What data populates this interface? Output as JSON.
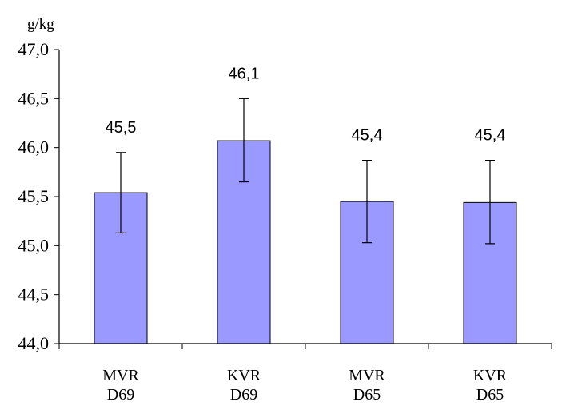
{
  "chart_data": {
    "type": "bar",
    "unit_label": "g/kg",
    "categories": [
      [
        "MVR",
        "D69"
      ],
      [
        "KVR",
        "D69"
      ],
      [
        "MVR",
        "D65"
      ],
      [
        "KVR",
        "D65"
      ]
    ],
    "values": [
      45.54,
      46.07,
      45.45,
      45.44
    ],
    "data_labels": [
      "45,5",
      "46,1",
      "45,4",
      "45,4"
    ],
    "error_low": [
      45.13,
      45.65,
      45.03,
      45.02
    ],
    "error_high": [
      45.95,
      46.5,
      45.87,
      45.87
    ],
    "ylim": [
      44.0,
      47.0
    ],
    "yticks": [
      44.0,
      44.5,
      45.0,
      45.5,
      46.0,
      46.5,
      47.0
    ],
    "ytick_labels": [
      "44,0",
      "44,5",
      "45,0",
      "45,5",
      "46,0",
      "46,5",
      "47,0"
    ],
    "bar_color": "#9999ff",
    "grid": false,
    "legend": "none"
  }
}
